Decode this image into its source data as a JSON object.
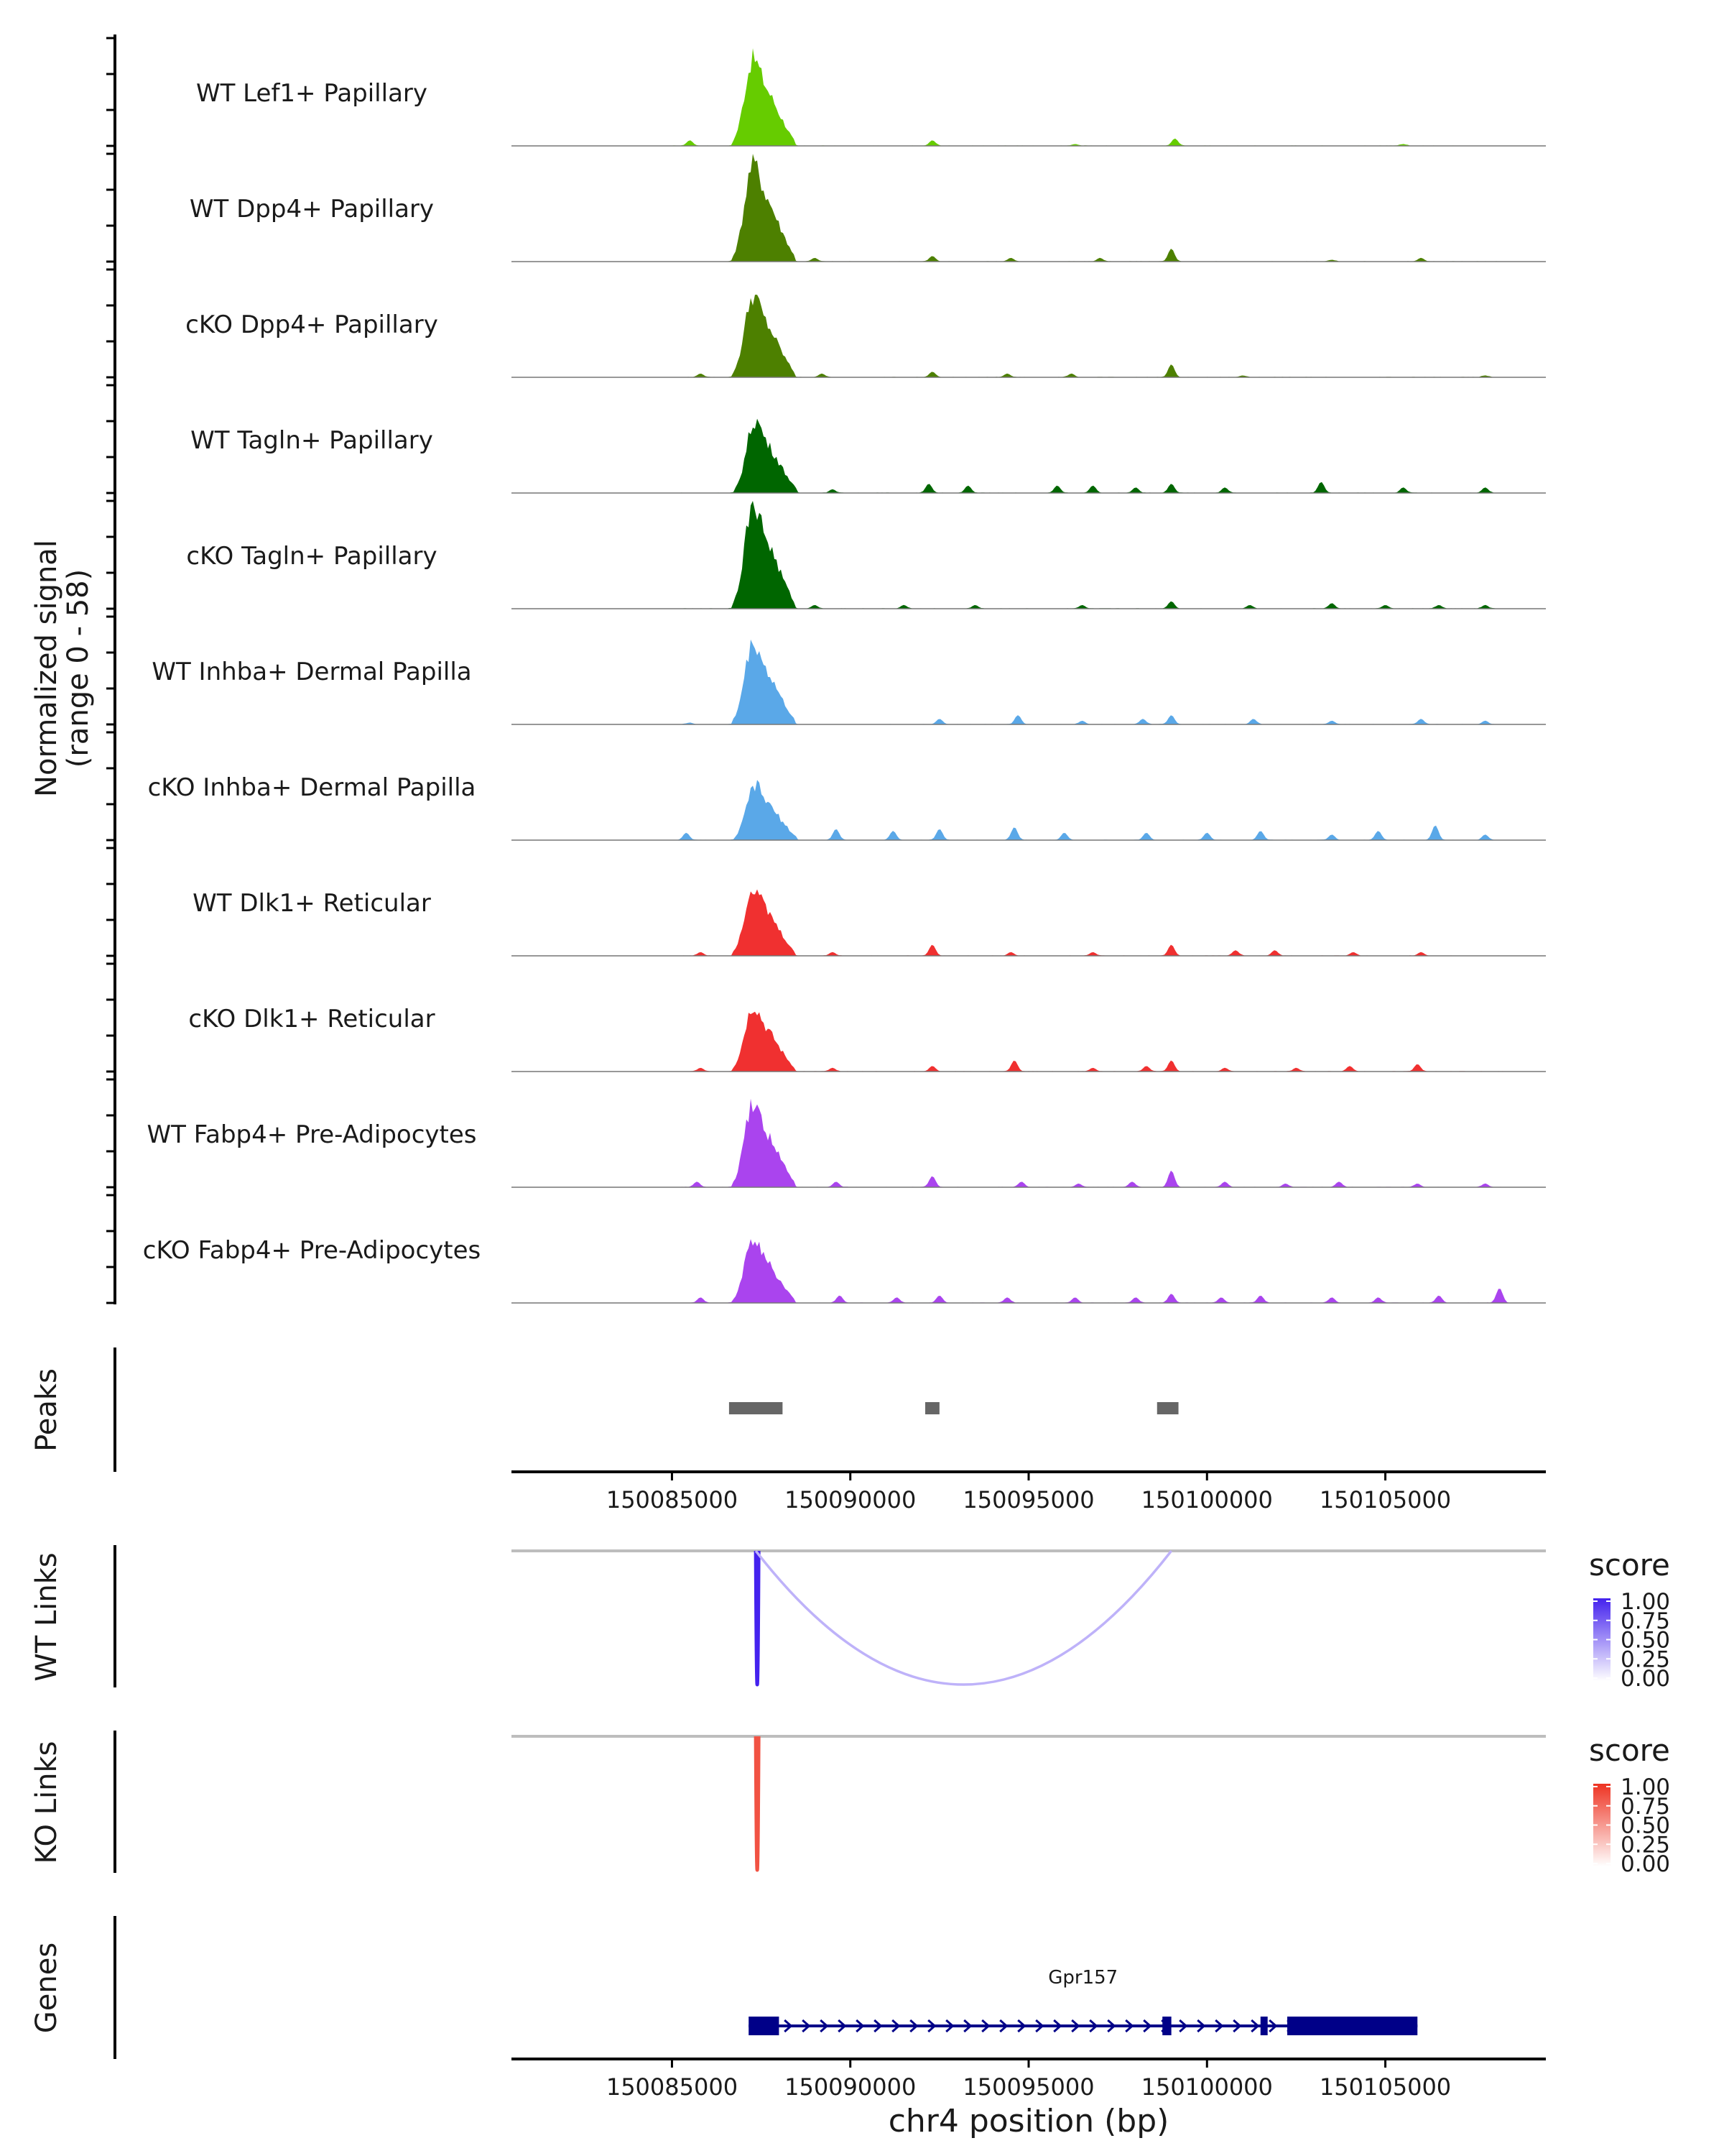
{
  "chart_data": {
    "type": "area",
    "title": "",
    "xlabel": "chr4 position (bp)",
    "xlim": [
      150080500,
      150109500
    ],
    "xticks": [
      150085000,
      150090000,
      150095000,
      150100000,
      150105000
    ],
    "xtick_labels": [
      "150085000",
      "150090000",
      "150095000",
      "150100000",
      "150105000"
    ],
    "coverage": {
      "ylabel_line1": "Normalized signal",
      "ylabel_line2": "(range 0 - 58)",
      "ylim": [
        0,
        58
      ],
      "tracks": [
        {
          "name": "WT Lef1+ Papillary",
          "color": "#66cc00",
          "peak_pos": 150087250,
          "peak_height": 48,
          "minor": [
            [
              150085500,
              3
            ],
            [
              150092300,
              3
            ],
            [
              150096300,
              1
            ],
            [
              150099100,
              4
            ],
            [
              150105500,
              1
            ]
          ]
        },
        {
          "name": "WT Dpp4+ Papillary",
          "color": "#4d8000",
          "peak_pos": 150087250,
          "peak_height": 54,
          "minor": [
            [
              150089000,
              2
            ],
            [
              150092300,
              3
            ],
            [
              150094500,
              2
            ],
            [
              150097000,
              2
            ],
            [
              150099000,
              7
            ],
            [
              150103500,
              1
            ],
            [
              150106000,
              2
            ]
          ]
        },
        {
          "name": "cKO Dpp4+ Papillary",
          "color": "#4d8000",
          "peak_pos": 150087250,
          "peak_height": 45,
          "minor": [
            [
              150085800,
              2
            ],
            [
              150089200,
              2
            ],
            [
              150092300,
              3
            ],
            [
              150094400,
              2
            ],
            [
              150096200,
              2
            ],
            [
              150099000,
              7
            ],
            [
              150101000,
              1
            ],
            [
              150107800,
              1
            ]
          ]
        },
        {
          "name": "WT Tagln+ Papillary",
          "color": "#006600",
          "peak_pos": 150087300,
          "peak_height": 40,
          "minor": [
            [
              150089500,
              2
            ],
            [
              150092200,
              5
            ],
            [
              150093300,
              4
            ],
            [
              150095800,
              4
            ],
            [
              150096800,
              4
            ],
            [
              150098000,
              3
            ],
            [
              150099000,
              5
            ],
            [
              150100500,
              3
            ],
            [
              150103200,
              6
            ],
            [
              150105500,
              3
            ],
            [
              150107800,
              3
            ]
          ]
        },
        {
          "name": "cKO Tagln+ Papillary",
          "color": "#006600",
          "peak_pos": 150087250,
          "peak_height": 58,
          "minor": [
            [
              150089000,
              2
            ],
            [
              150091500,
              2
            ],
            [
              150093500,
              2
            ],
            [
              150096500,
              2
            ],
            [
              150099000,
              4
            ],
            [
              150101200,
              2
            ],
            [
              150103500,
              3
            ],
            [
              150105000,
              2
            ],
            [
              150106500,
              2
            ],
            [
              150107800,
              2
            ]
          ]
        },
        {
          "name": "WT Inhba+ Dermal Papilla",
          "color": "#5aa8e8",
          "peak_pos": 150087250,
          "peak_height": 45,
          "minor": [
            [
              150085500,
              1
            ],
            [
              150092500,
              3
            ],
            [
              150094700,
              5
            ],
            [
              150096500,
              2
            ],
            [
              150098200,
              3
            ],
            [
              150099000,
              5
            ],
            [
              150101300,
              3
            ],
            [
              150103500,
              2
            ],
            [
              150106000,
              3
            ],
            [
              150107800,
              2
            ]
          ]
        },
        {
          "name": "cKO Inhba+ Dermal Papilla",
          "color": "#5aa8e8",
          "peak_pos": 150087300,
          "peak_height": 30,
          "minor": [
            [
              150085400,
              4
            ],
            [
              150089600,
              6
            ],
            [
              150091200,
              5
            ],
            [
              150092500,
              6
            ],
            [
              150094600,
              7
            ],
            [
              150096000,
              4
            ],
            [
              150098300,
              4
            ],
            [
              150100000,
              4
            ],
            [
              150101500,
              5
            ],
            [
              150103500,
              3
            ],
            [
              150104800,
              5
            ],
            [
              150106400,
              8
            ],
            [
              150107800,
              3
            ]
          ]
        },
        {
          "name": "WT Dlk1+ Reticular",
          "color": "#f03030",
          "peak_pos": 150087250,
          "peak_height": 38,
          "minor": [
            [
              150085800,
              2
            ],
            [
              150089500,
              2
            ],
            [
              150092300,
              6
            ],
            [
              150094500,
              2
            ],
            [
              150096800,
              2
            ],
            [
              150099000,
              6
            ],
            [
              150100800,
              3
            ],
            [
              150101900,
              3
            ],
            [
              150104100,
              2
            ],
            [
              150106000,
              2
            ]
          ]
        },
        {
          "name": "cKO Dlk1+ Reticular",
          "color": "#f03030",
          "peak_pos": 150087250,
          "peak_height": 36,
          "minor": [
            [
              150085800,
              2
            ],
            [
              150089500,
              2
            ],
            [
              150092300,
              3
            ],
            [
              150094600,
              6
            ],
            [
              150096800,
              2
            ],
            [
              150098300,
              3
            ],
            [
              150099000,
              6
            ],
            [
              150100500,
              2
            ],
            [
              150102500,
              2
            ],
            [
              150104000,
              3
            ],
            [
              150105900,
              4
            ]
          ]
        },
        {
          "name": "WT Fabp4+ Pre-Adipocytes",
          "color": "#aa44ee",
          "peak_pos": 150087250,
          "peak_height": 46,
          "minor": [
            [
              150085700,
              3
            ],
            [
              150089600,
              3
            ],
            [
              150092300,
              6
            ],
            [
              150094800,
              3
            ],
            [
              150096400,
              2
            ],
            [
              150097900,
              3
            ],
            [
              150099000,
              9
            ],
            [
              150100500,
              3
            ],
            [
              150102200,
              2
            ],
            [
              150103700,
              3
            ],
            [
              150105900,
              2
            ],
            [
              150107800,
              2
            ]
          ]
        },
        {
          "name": "cKO Fabp4+ Pre-Adipocytes",
          "color": "#aa44ee",
          "peak_pos": 150087250,
          "peak_height": 35,
          "minor": [
            [
              150085800,
              3
            ],
            [
              150089700,
              4
            ],
            [
              150091300,
              3
            ],
            [
              150092500,
              4
            ],
            [
              150094400,
              3
            ],
            [
              150096300,
              3
            ],
            [
              150098000,
              3
            ],
            [
              150099000,
              5
            ],
            [
              150100400,
              3
            ],
            [
              150101500,
              4
            ],
            [
              150103500,
              3
            ],
            [
              150104800,
              3
            ],
            [
              150106500,
              4
            ],
            [
              150108200,
              8
            ]
          ]
        }
      ]
    },
    "peaks": {
      "label": "Peaks",
      "color": "#666666",
      "regions": [
        [
          150086600,
          150088100
        ],
        [
          150092100,
          150092500
        ],
        [
          150098600,
          150099200
        ]
      ]
    },
    "wt_links": {
      "label": "WT Links",
      "color_low": "#ffffff",
      "color_high": "#4422ee",
      "links": [
        {
          "start": 150087350,
          "end": 150087420,
          "score": 1.0
        },
        {
          "start": 150087350,
          "end": 150099000,
          "score": 0.35
        }
      ]
    },
    "ko_links": {
      "label": "KO Links",
      "color_low": "#ffffff",
      "color_high": "#ee3322",
      "links": [
        {
          "start": 150087350,
          "end": 150087420,
          "score": 0.85
        }
      ]
    },
    "legend": {
      "title": "score",
      "breaks": [
        "1.00",
        "0.75",
        "0.50",
        "0.25",
        "0.00"
      ]
    },
    "genes": {
      "label": "Genes",
      "color": "#000088",
      "gene": {
        "name": "Gpr157",
        "start": 150087150,
        "end": 150105900,
        "strand": "+",
        "exons": [
          [
            150087150,
            150088000
          ],
          [
            150098750,
            150099000
          ],
          [
            150101500,
            150101700
          ],
          [
            150102250,
            150105900
          ]
        ]
      }
    }
  }
}
